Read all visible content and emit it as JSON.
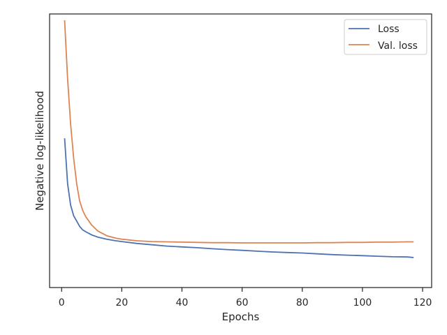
{
  "chart_data": {
    "type": "line",
    "xlabel": "Epochs",
    "ylabel": "Negative log-likelihood",
    "xlim": [
      -4,
      123
    ],
    "ylim": [
      0.0,
      1.0
    ],
    "y_tick_labels_shown": false,
    "xticks": [
      0,
      20,
      40,
      60,
      80,
      100,
      120
    ],
    "grid": false,
    "legend_position": "top-right",
    "series": [
      {
        "name": "Loss",
        "color": "#4c72b0",
        "x": [
          1,
          2,
          3,
          4,
          5,
          6,
          7,
          8,
          10,
          12,
          15,
          18,
          20,
          25,
          30,
          35,
          40,
          45,
          50,
          55,
          60,
          65,
          70,
          75,
          80,
          85,
          90,
          95,
          100,
          105,
          110,
          115,
          117
        ],
        "y": [
          0.556,
          0.385,
          0.305,
          0.265,
          0.245,
          0.225,
          0.212,
          0.205,
          0.193,
          0.185,
          0.177,
          0.171,
          0.168,
          0.161,
          0.156,
          0.151,
          0.148,
          0.145,
          0.141,
          0.138,
          0.135,
          0.132,
          0.129,
          0.127,
          0.125,
          0.122,
          0.119,
          0.117,
          0.115,
          0.113,
          0.111,
          0.11,
          0.108
        ]
      },
      {
        "name": "Val. loss",
        "color": "#dd8452",
        "x": [
          1,
          2,
          3,
          4,
          5,
          6,
          7,
          8,
          10,
          12,
          15,
          18,
          20,
          25,
          30,
          35,
          40,
          45,
          50,
          55,
          60,
          65,
          70,
          75,
          80,
          85,
          90,
          95,
          100,
          105,
          110,
          115,
          117
        ],
        "y": [
          1.0,
          0.78,
          0.61,
          0.48,
          0.385,
          0.32,
          0.285,
          0.262,
          0.23,
          0.208,
          0.19,
          0.181,
          0.177,
          0.171,
          0.168,
          0.167,
          0.166,
          0.165,
          0.164,
          0.164,
          0.163,
          0.163,
          0.163,
          0.163,
          0.163,
          0.164,
          0.164,
          0.165,
          0.165,
          0.166,
          0.166,
          0.167,
          0.167
        ]
      }
    ]
  }
}
